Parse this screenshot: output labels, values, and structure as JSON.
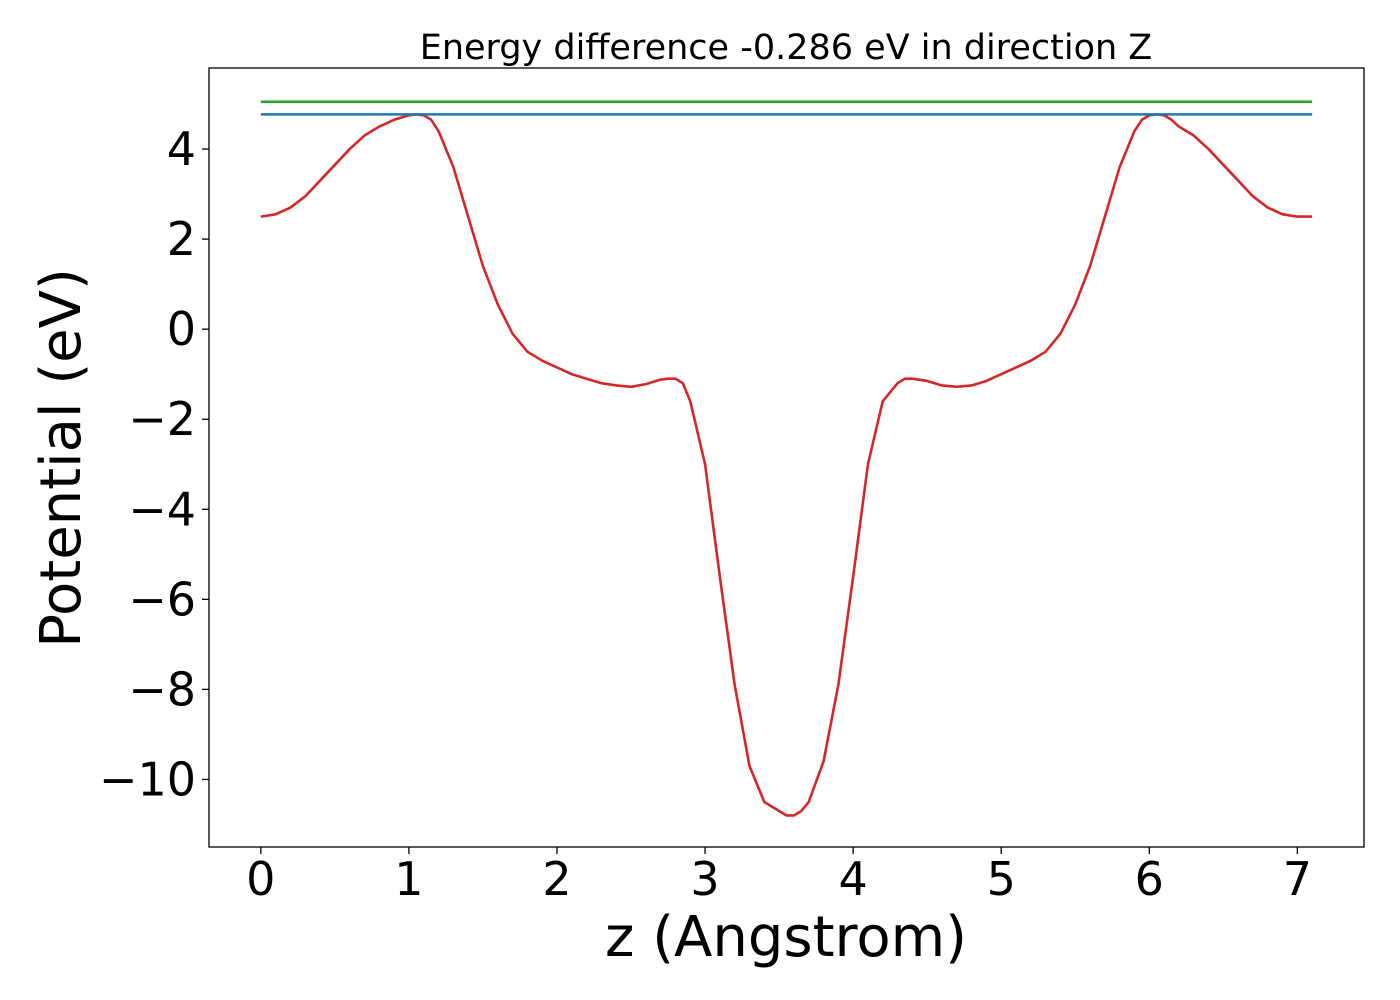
{
  "chart_data": {
    "type": "line",
    "title": "Energy difference -0.286 eV in direction Z",
    "xlabel": "z (Angstrom)",
    "ylabel": "Potential (eV)",
    "xlim": [
      -0.35,
      7.45
    ],
    "ylim": [
      -11.5,
      5.8
    ],
    "xticks": [
      0,
      1,
      2,
      3,
      4,
      5,
      6,
      7
    ],
    "xtick_labels": [
      "0",
      "1",
      "2",
      "3",
      "4",
      "5",
      "6",
      "7"
    ],
    "yticks": [
      4,
      2,
      0,
      -2,
      -4,
      -6,
      -8,
      -10
    ],
    "ytick_labels": [
      "4",
      "2",
      "0",
      "−2",
      "−4",
      "−6",
      "−8",
      "−10"
    ],
    "grid": false,
    "series": [
      {
        "color": "#d62728",
        "x": [
          0.0,
          0.1,
          0.2,
          0.3,
          0.4,
          0.5,
          0.6,
          0.7,
          0.8,
          0.9,
          1.0,
          1.05,
          1.1,
          1.15,
          1.2,
          1.3,
          1.4,
          1.5,
          1.6,
          1.7,
          1.8,
          1.9,
          2.0,
          2.1,
          2.2,
          2.3,
          2.4,
          2.5,
          2.6,
          2.7,
          2.75,
          2.8,
          2.85,
          2.9,
          3.0,
          3.1,
          3.2,
          3.3,
          3.4,
          3.5,
          3.55,
          3.6,
          3.65,
          3.7,
          3.8,
          3.9,
          4.0,
          4.1,
          4.2,
          4.3,
          4.35,
          4.4,
          4.5,
          4.6,
          4.7,
          4.8,
          4.9,
          5.0,
          5.1,
          5.2,
          5.3,
          5.4,
          5.5,
          5.6,
          5.7,
          5.8,
          5.9,
          5.95,
          6.0,
          6.05,
          6.1,
          6.15,
          6.2,
          6.3,
          6.4,
          6.5,
          6.6,
          6.7,
          6.8,
          6.9,
          7.0,
          7.1
        ],
        "y": [
          2.5,
          2.55,
          2.7,
          2.95,
          3.3,
          3.65,
          4.0,
          4.3,
          4.5,
          4.65,
          4.75,
          4.77,
          4.75,
          4.65,
          4.4,
          3.6,
          2.5,
          1.4,
          0.55,
          -0.1,
          -0.5,
          -0.7,
          -0.85,
          -1.0,
          -1.1,
          -1.2,
          -1.25,
          -1.28,
          -1.22,
          -1.12,
          -1.1,
          -1.1,
          -1.2,
          -1.6,
          -3.0,
          -5.5,
          -7.9,
          -9.7,
          -10.5,
          -10.7,
          -10.8,
          -10.8,
          -10.7,
          -10.5,
          -9.6,
          -7.9,
          -5.5,
          -3.0,
          -1.6,
          -1.2,
          -1.1,
          -1.1,
          -1.15,
          -1.25,
          -1.28,
          -1.25,
          -1.15,
          -1.0,
          -0.85,
          -0.7,
          -0.5,
          -0.1,
          0.55,
          1.4,
          2.5,
          3.6,
          4.4,
          4.65,
          4.75,
          4.77,
          4.75,
          4.65,
          4.5,
          4.3,
          4.0,
          3.65,
          3.3,
          2.95,
          2.7,
          2.55,
          2.5,
          2.5
        ]
      },
      {
        "color": "#1f77b4",
        "x": [
          0.0,
          7.1
        ],
        "y": [
          4.77,
          4.77
        ]
      },
      {
        "color": "#2ca02c",
        "x": [
          0.0,
          7.1
        ],
        "y": [
          5.05,
          5.05
        ]
      }
    ]
  }
}
